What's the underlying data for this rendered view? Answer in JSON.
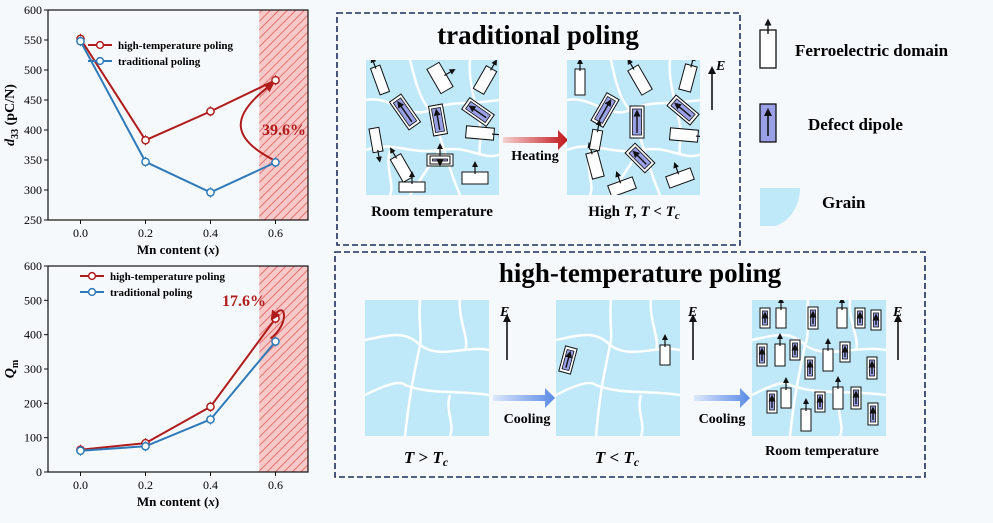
{
  "chart_data": [
    {
      "type": "line",
      "xlabel": "Mn content (x)",
      "xlabel_main": "Mn content (",
      "xlabel_var": "x",
      "xlabel_close": ")",
      "ylabel": "d33 (pC/N)",
      "ylabel_base": "d",
      "ylabel_sub": "33",
      "ylabel_unit": " (pC/N)",
      "xlim": [
        -0.1,
        0.7
      ],
      "ylim": [
        250,
        600
      ],
      "xticks": [
        "0.0",
        "0.2",
        "0.4",
        "0.6"
      ],
      "yticks": [
        "250",
        "300",
        "350",
        "400",
        "450",
        "500",
        "550",
        "600"
      ],
      "series": [
        {
          "name": "high-temperature poling",
          "color": "#b01c1c",
          "x": [
            0.0,
            0.2,
            0.4,
            0.6
          ],
          "y": [
            552,
            383,
            431,
            483
          ]
        },
        {
          "name": "traditional poling",
          "color": "#2e7ab8",
          "x": [
            0.0,
            0.2,
            0.4,
            0.6
          ],
          "y": [
            548,
            347,
            296,
            346
          ]
        }
      ],
      "annotation": "39.6%"
    },
    {
      "type": "line",
      "xlabel": "Mn content (x)",
      "xlabel_main": "Mn content (",
      "xlabel_var": "x",
      "xlabel_close": ")",
      "ylabel": "Qm",
      "ylabel_base": "Q",
      "ylabel_sub": "m",
      "ylabel_unit": "",
      "xlim": [
        -0.1,
        0.7
      ],
      "ylim": [
        0,
        600
      ],
      "xticks": [
        "0.0",
        "0.2",
        "0.4",
        "0.6"
      ],
      "yticks": [
        "0",
        "100",
        "200",
        "300",
        "400",
        "500",
        "600"
      ],
      "series": [
        {
          "name": "high-temperature poling",
          "color": "#b01c1c",
          "x": [
            0.0,
            0.2,
            0.4,
            0.6
          ],
          "y": [
            65,
            84,
            190,
            447
          ]
        },
        {
          "name": "traditional poling",
          "color": "#2e7ab8",
          "x": [
            0.0,
            0.2,
            0.4,
            0.6
          ],
          "y": [
            62,
            75,
            153,
            380
          ]
        }
      ],
      "annotation": "17.6%"
    }
  ],
  "traditional": {
    "title": "traditional poling",
    "left_caption": "Room temperature",
    "heating": "Heating",
    "right_caption_a": "High ",
    "right_caption_t": "T",
    "right_caption_b": ", ",
    "right_caption_c": "T",
    "right_caption_lt": " < ",
    "right_caption_tc": "T",
    "right_caption_sub": "c",
    "field": "E"
  },
  "hightemp": {
    "title": "high-temperature poling",
    "cap1_t": "T",
    "cap1_op": " > ",
    "cap1_tc": "T",
    "cap1_sub": "c",
    "cap2_t": "T",
    "cap2_op": " < ",
    "cap2_tc": "T",
    "cap2_sub": "c",
    "cap3": "Room temperature",
    "cooling1": "Cooling",
    "cooling2": "Cooling",
    "field": "E"
  },
  "legend": {
    "domain": "Ferroelectric domain",
    "dipole": "Defect dipole",
    "grain": "Grain"
  },
  "colors": {
    "grain_fill": "#bfe9f8",
    "box_border": "#1f2d5c",
    "hatch": "#e05a5a",
    "dipole_fill": "#9aa0e6"
  }
}
